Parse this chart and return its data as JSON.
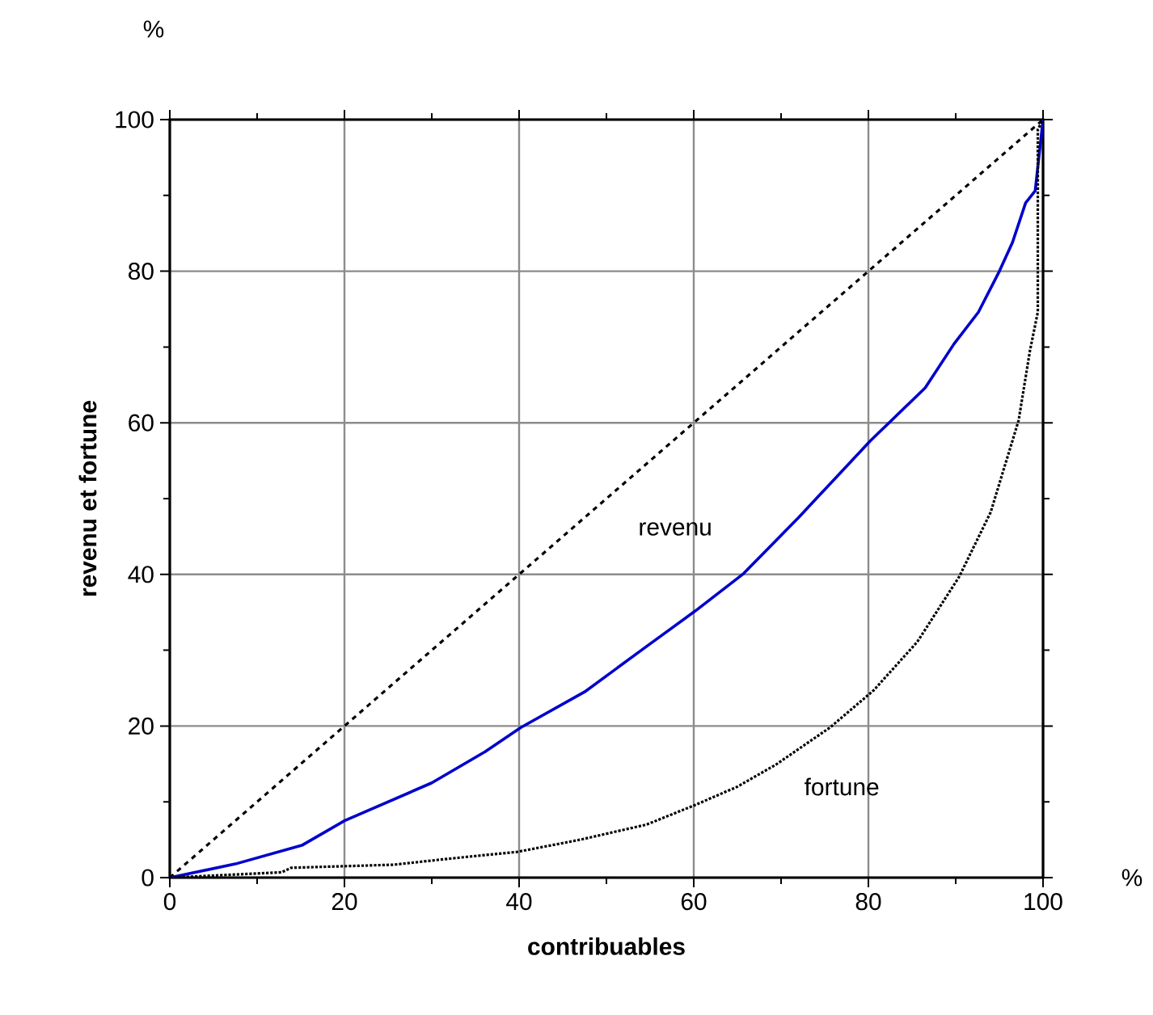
{
  "chart_data": {
    "type": "line",
    "xlabel": "contribuables",
    "ylabel": "revenu et fortune",
    "annotations": [
      "%",
      "%"
    ],
    "xlim": [
      0,
      100
    ],
    "ylim": [
      0,
      100
    ],
    "xticks": [
      0,
      20,
      40,
      60,
      80,
      100
    ],
    "yticks": [
      0,
      20,
      40,
      60,
      80,
      100
    ],
    "grid": true,
    "marker": "none",
    "series": [
      {
        "color": "#000000",
        "line_style": "dashed",
        "x": [
          0,
          100
        ],
        "values": [
          0,
          100
        ]
      },
      {
        "name": "revenu",
        "color": "#0000cc",
        "line_style": "solid",
        "x": [
          0,
          7.5,
          15.2,
          20,
          30,
          36.1,
          40.2,
          47.5,
          54.6,
          60.2,
          65.7,
          72,
          80.2,
          86.5,
          89.8,
          92.6,
          95,
          96.5,
          98,
          99.1,
          100
        ],
        "values": [
          0,
          1.8,
          4.3,
          7.5,
          12.5,
          16.6,
          19.8,
          24.5,
          30.5,
          35.2,
          40.1,
          47.5,
          57.6,
          64.6,
          70.4,
          74.6,
          80,
          83.8,
          89,
          90.6,
          100
        ]
      },
      {
        "name": "fortune",
        "color": "#000000",
        "line_style": "dotted",
        "x": [
          0,
          12.8,
          13.9,
          25.6,
          32,
          39.8,
          47,
          54.6,
          60.2,
          65,
          69.4,
          75.6,
          80.6,
          85.6,
          90.4,
          94,
          97.2,
          98.5,
          99.4,
          99.4,
          100
        ],
        "values": [
          0,
          0.7,
          1.3,
          1.7,
          2.5,
          3.4,
          5,
          7,
          9.6,
          12,
          14.9,
          19.8,
          24.7,
          31.1,
          39.7,
          48.2,
          60.3,
          69.5,
          74.6,
          98.7,
          100
        ]
      }
    ]
  }
}
